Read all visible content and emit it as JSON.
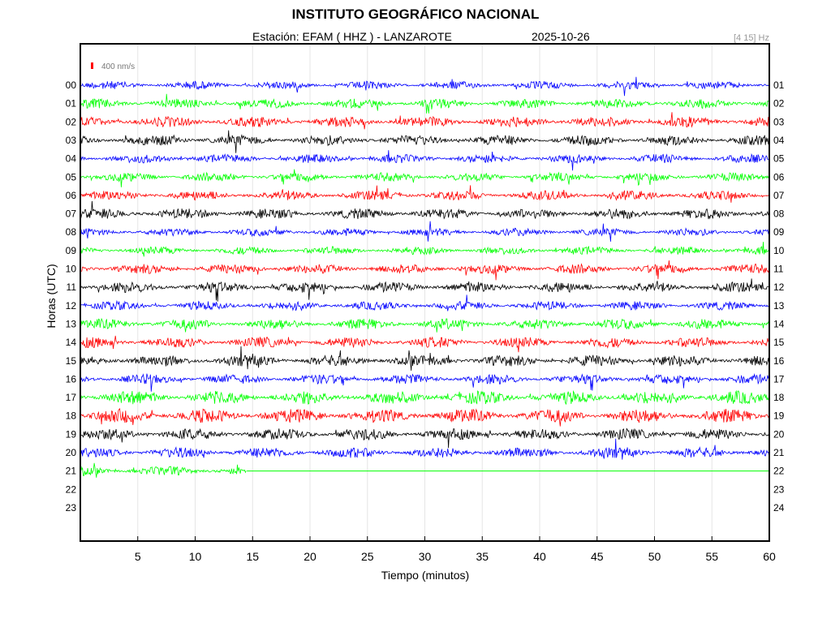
{
  "chart_data": {
    "type": "line",
    "title": "INSTITUTO GEOGRÁFICO NACIONAL",
    "station_label": "Estación:  EFAM ( HHZ ) - LANZAROTE",
    "date": "2025-10-26",
    "band": "[4 15] Hz",
    "scale_label": "400 nm/s",
    "xlabel": "Tiempo (minutos)",
    "ylabel": "Horas (UTC)",
    "xlim": [
      0,
      60
    ],
    "xticks": [
      5,
      10,
      15,
      20,
      25,
      30,
      35,
      40,
      45,
      50,
      55,
      60
    ],
    "left_ticks": [
      "00",
      "01",
      "02",
      "03",
      "04",
      "05",
      "06",
      "07",
      "08",
      "09",
      "10",
      "11",
      "12",
      "13",
      "14",
      "15",
      "16",
      "17",
      "18",
      "19",
      "20",
      "21",
      "22",
      "23"
    ],
    "right_ticks": [
      "01",
      "02",
      "03",
      "04",
      "05",
      "06",
      "07",
      "08",
      "09",
      "10",
      "11",
      "12",
      "13",
      "14",
      "15",
      "16",
      "17",
      "18",
      "19",
      "20",
      "21",
      "22",
      "23",
      "24"
    ],
    "grid": true,
    "series": [
      {
        "hour": "00",
        "color": "#0000ff",
        "amplitude": 0.45,
        "end_minute": 60
      },
      {
        "hour": "01",
        "color": "#00ff00",
        "amplitude": 0.55,
        "end_minute": 60
      },
      {
        "hour": "02",
        "color": "#ff0000",
        "amplitude": 0.6,
        "end_minute": 60
      },
      {
        "hour": "03",
        "color": "#000000",
        "amplitude": 0.6,
        "end_minute": 60
      },
      {
        "hour": "04",
        "color": "#0000ff",
        "amplitude": 0.5,
        "end_minute": 60
      },
      {
        "hour": "05",
        "color": "#00ff00",
        "amplitude": 0.5,
        "end_minute": 60
      },
      {
        "hour": "06",
        "color": "#ff0000",
        "amplitude": 0.55,
        "end_minute": 60
      },
      {
        "hour": "07",
        "color": "#000000",
        "amplitude": 0.6,
        "end_minute": 60
      },
      {
        "hour": "08",
        "color": "#0000ff",
        "amplitude": 0.45,
        "end_minute": 60
      },
      {
        "hour": "09",
        "color": "#00ff00",
        "amplitude": 0.45,
        "end_minute": 60
      },
      {
        "hour": "10",
        "color": "#ff0000",
        "amplitude": 0.55,
        "end_minute": 60
      },
      {
        "hour": "11",
        "color": "#000000",
        "amplitude": 0.6,
        "end_minute": 60
      },
      {
        "hour": "12",
        "color": "#0000ff",
        "amplitude": 0.5,
        "end_minute": 60
      },
      {
        "hour": "13",
        "color": "#00ff00",
        "amplitude": 0.6,
        "end_minute": 60
      },
      {
        "hour": "14",
        "color": "#ff0000",
        "amplitude": 0.6,
        "end_minute": 60
      },
      {
        "hour": "15",
        "color": "#000000",
        "amplitude": 0.65,
        "end_minute": 60
      },
      {
        "hour": "16",
        "color": "#0000ff",
        "amplitude": 0.55,
        "end_minute": 60
      },
      {
        "hour": "17",
        "color": "#00ff00",
        "amplitude": 0.75,
        "end_minute": 60
      },
      {
        "hour": "18",
        "color": "#ff0000",
        "amplitude": 0.8,
        "end_minute": 60
      },
      {
        "hour": "19",
        "color": "#000000",
        "amplitude": 0.65,
        "end_minute": 60
      },
      {
        "hour": "20",
        "color": "#0000ff",
        "amplitude": 0.6,
        "end_minute": 60
      },
      {
        "hour": "21",
        "color": "#00ff00",
        "amplitude": 0.55,
        "end_minute": 14.5
      }
    ]
  }
}
